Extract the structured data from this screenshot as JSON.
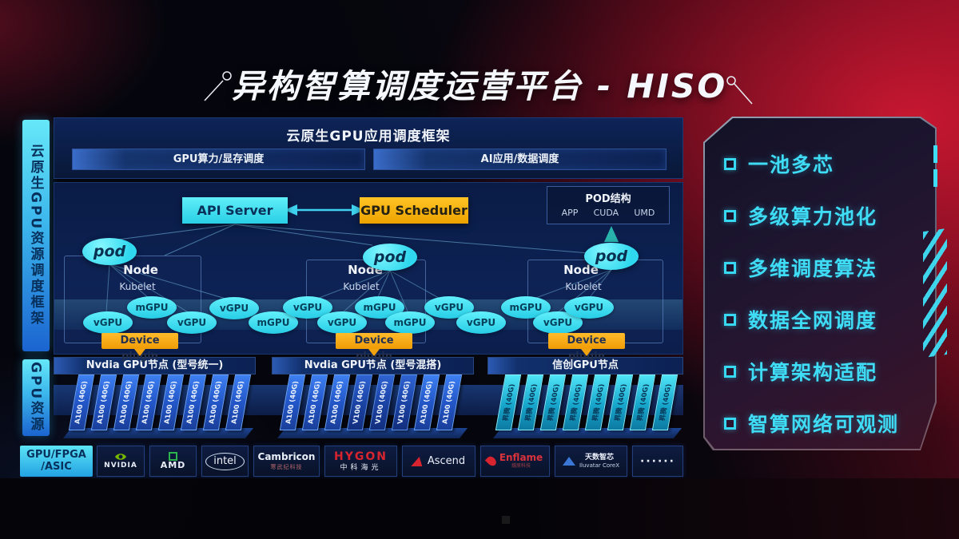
{
  "title": "异构智算调度运营平台 - HISO",
  "rails": {
    "framework": "云原生GPU资源调度框架",
    "gpu": "GPU资源"
  },
  "framework": {
    "title": "云原生GPU应用调度框架",
    "left_bar": "GPU算力/显存调度",
    "right_bar": "AI应用/数据调度"
  },
  "control": {
    "api_server": "API Server",
    "gpu_scheduler": "GPU Scheduler",
    "pod_title": "POD结构",
    "pod_items": [
      "APP",
      "CUDA",
      "UMD"
    ]
  },
  "cluster": {
    "node_label": "Node",
    "kubelet_label": "Kubelet",
    "pod_label": "pod",
    "plugin_label": "Device plugin"
  },
  "gpus": [
    "vGPU",
    "mGPU",
    "vGPU",
    "vGPU",
    "mGPU",
    "vGPU",
    "vGPU",
    "mGPU",
    "mGPU",
    "vGPU",
    "vGPU",
    "mGPU",
    "vGPU",
    "vGPU"
  ],
  "racks": [
    {
      "header": "Nvdia GPU节点 (型号统一)",
      "style": "blue",
      "cards": [
        "A100 (40G)",
        "A100 (40G)",
        "A100 (40G)",
        "A100 (40G)",
        "A100 (40G)",
        "A100 (40G)",
        "A100 (40G)",
        "A100 (40G)"
      ]
    },
    {
      "header": "Nvdia GPU节点 (型号混搭)",
      "style": "blue",
      "cards": [
        "A100 (40G)",
        "A100 (40G)",
        "A100 (40G)",
        "V100 (40G)",
        "V100 (40G)",
        "V100 (40G)",
        "A100 (40G)",
        "A100 (40G)"
      ]
    },
    {
      "header": "信创GPU节点",
      "style": "cyan",
      "cards": [
        "昇腾 (40G)",
        "昇腾 (40G)",
        "昇腾 (40G)",
        "昇腾 (40G)",
        "昇腾 (40G)",
        "昇腾 (40G)",
        "昇腾 (40G)",
        "昇腾 (40G)"
      ]
    }
  ],
  "hardware_row": {
    "label_line1": "GPU/FPGA",
    "label_line2": "/ASIC"
  },
  "vendors": [
    {
      "name": "NVIDIA"
    },
    {
      "name": "AMD"
    },
    {
      "name": "intel"
    },
    {
      "name": "Cambricon",
      "sub": "寒武纪科技"
    },
    {
      "name": "HYGON",
      "sub": "中科海光"
    },
    {
      "name": "Ascend"
    },
    {
      "name": "Enflame",
      "sub": "燧原科技"
    },
    {
      "name": "天数智芯",
      "sub": "Iluvatar CoreX"
    },
    {
      "name": "······"
    }
  ],
  "features": [
    "一池多芯",
    "多级算力池化",
    "多维调度算法",
    "数据全网调度",
    "计算架构适配",
    "智算网络可观测"
  ]
}
